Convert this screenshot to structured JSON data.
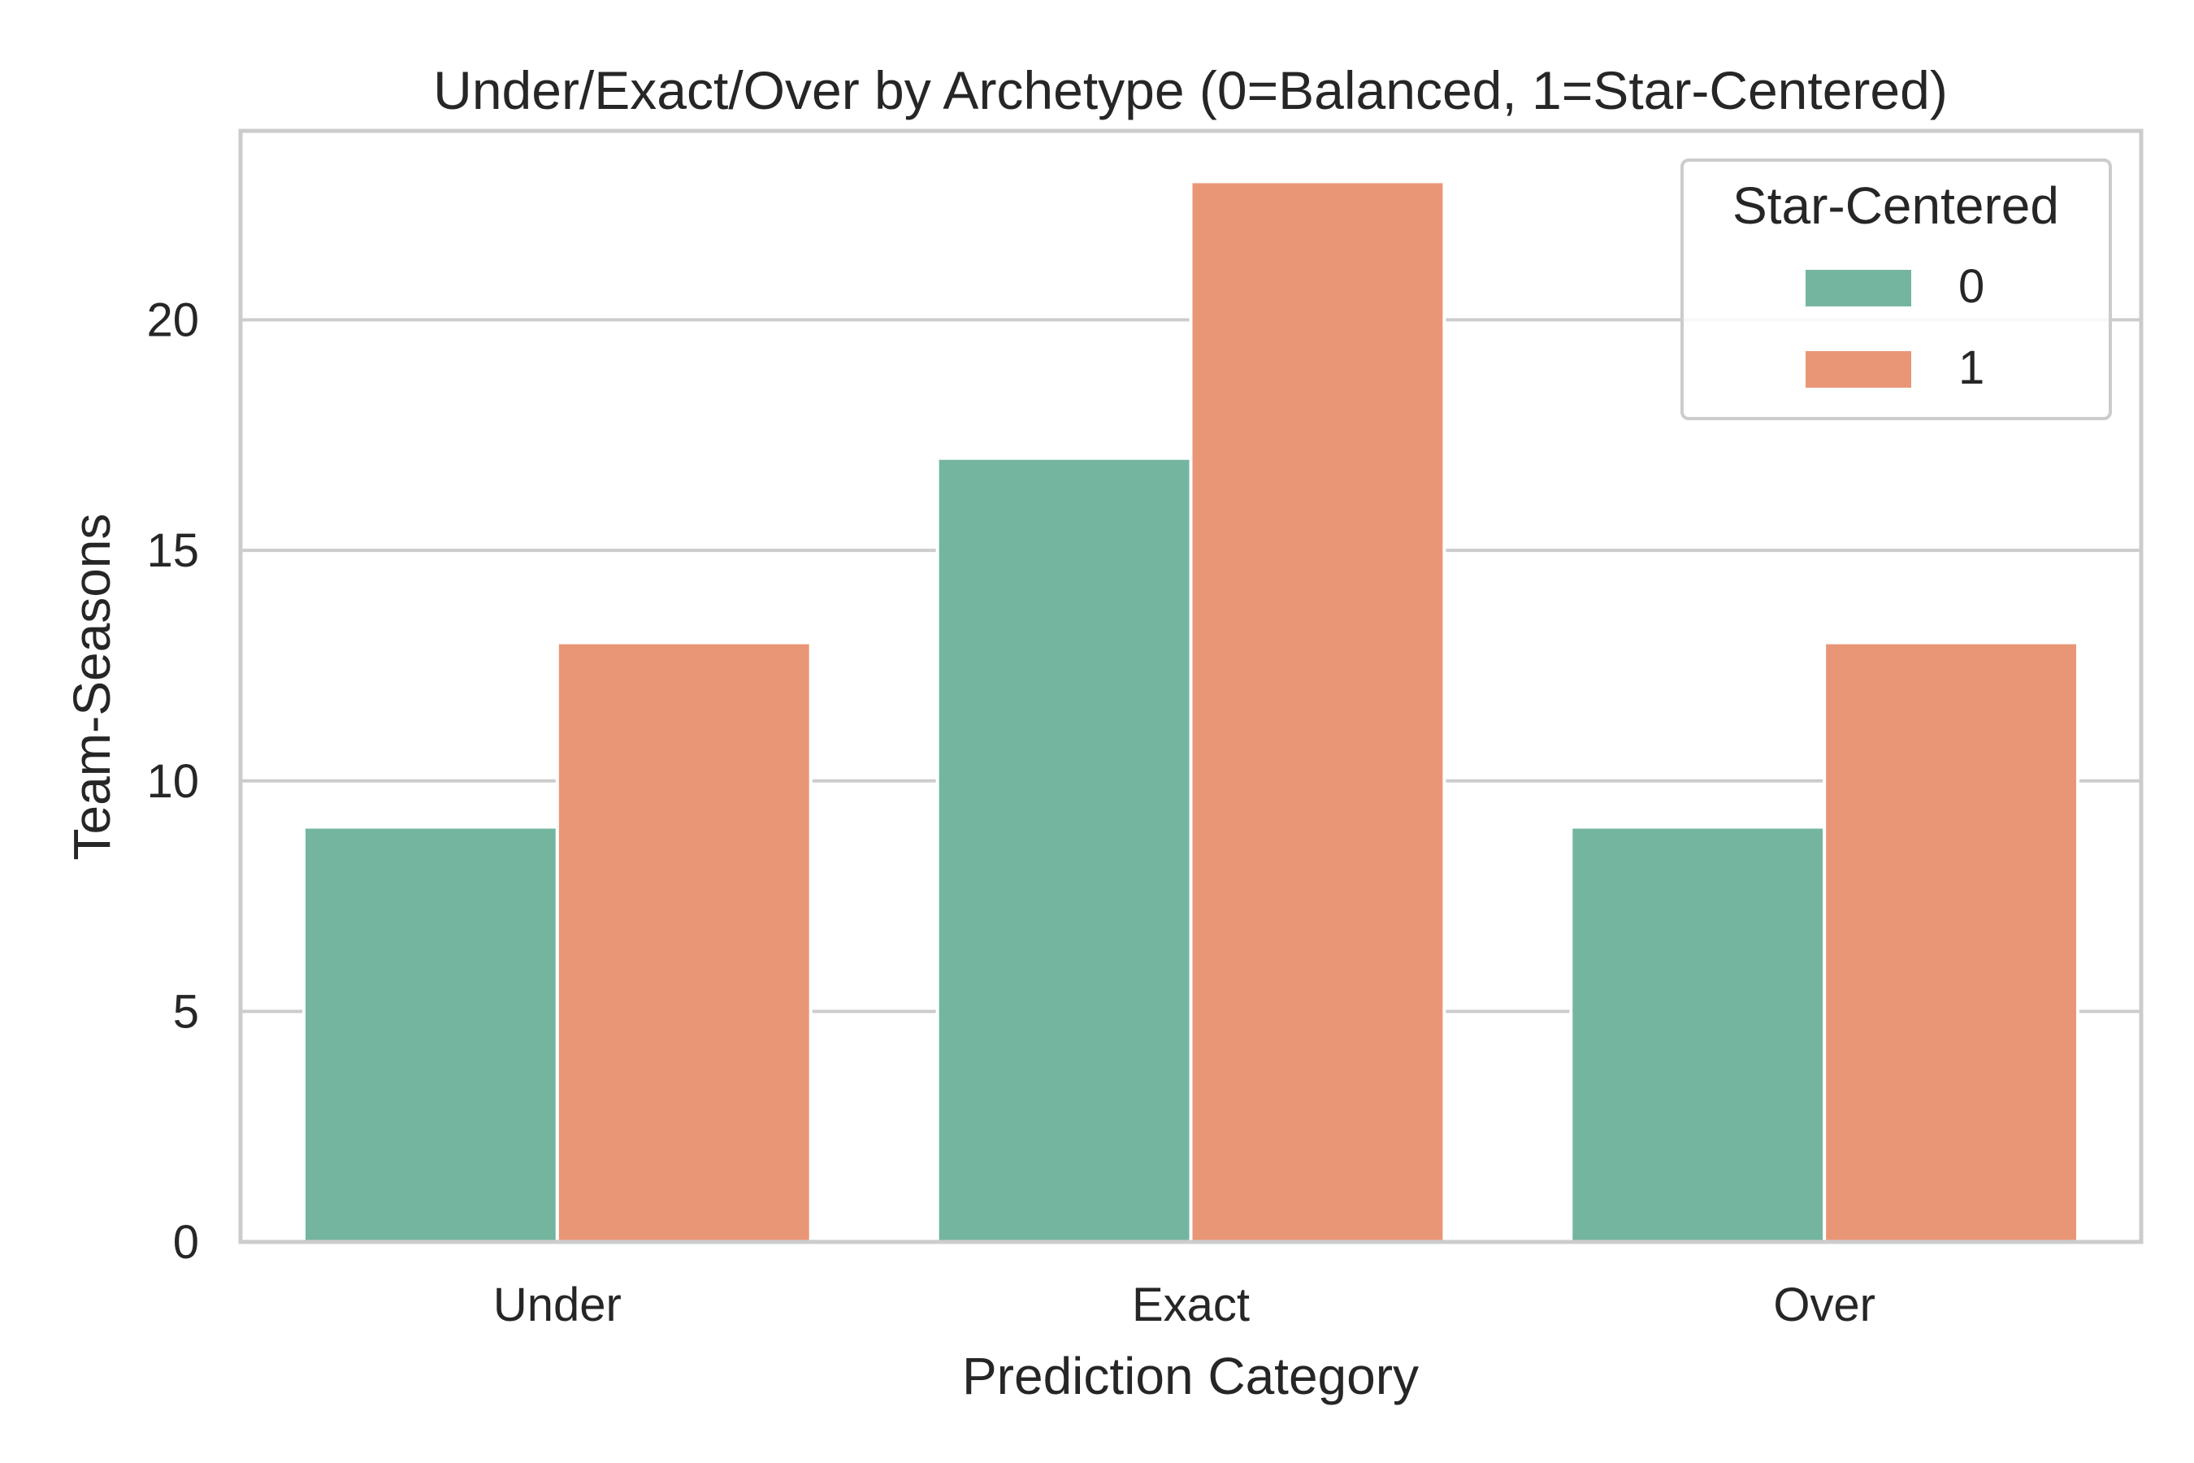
{
  "chart_data": {
    "type": "bar",
    "title": "Under/Exact/Over by Archetype (0=Balanced, 1=Star-Centered)",
    "xlabel": "Prediction Category",
    "ylabel": "Team-Seasons",
    "categories": [
      "Under",
      "Exact",
      "Over"
    ],
    "series": [
      {
        "name": "0",
        "values": [
          9,
          17,
          9
        ],
        "color": "#74b5a0"
      },
      {
        "name": "1",
        "values": [
          13,
          23,
          13
        ],
        "color": "#e99676"
      }
    ],
    "ylim": [
      0,
      24.1
    ],
    "yticks": [
      "0",
      "5",
      "10",
      "15",
      "20"
    ],
    "grid": "horizontal",
    "legend": {
      "title": "Star-Centered",
      "placement": "top-right"
    },
    "colors": {
      "grid": "#cccccc",
      "spine": "#cccccc",
      "text": "#262626"
    }
  }
}
